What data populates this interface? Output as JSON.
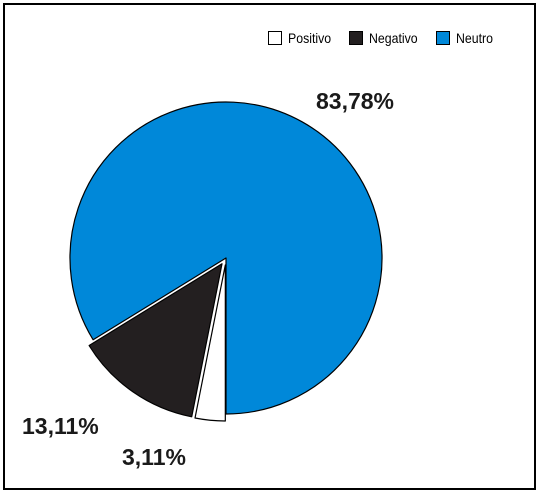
{
  "chart_data": {
    "type": "pie",
    "title": "",
    "slices": [
      {
        "name": "Positivo",
        "value": 3.11,
        "label": "3,11%",
        "color": "#ffffff",
        "exploded": true
      },
      {
        "name": "Negativo",
        "value": 13.11,
        "label": "13,11%",
        "color": "#231f20",
        "exploded": true
      },
      {
        "name": "Neutro",
        "value": 83.78,
        "label": "83,78%",
        "color": "#0088d9",
        "exploded": false
      }
    ],
    "legend": {
      "placement": "top-right",
      "entries": [
        "Positivo",
        "Negativo",
        "Neutro"
      ]
    },
    "start_angle": "6 o'clock",
    "direction": "clockwise"
  }
}
